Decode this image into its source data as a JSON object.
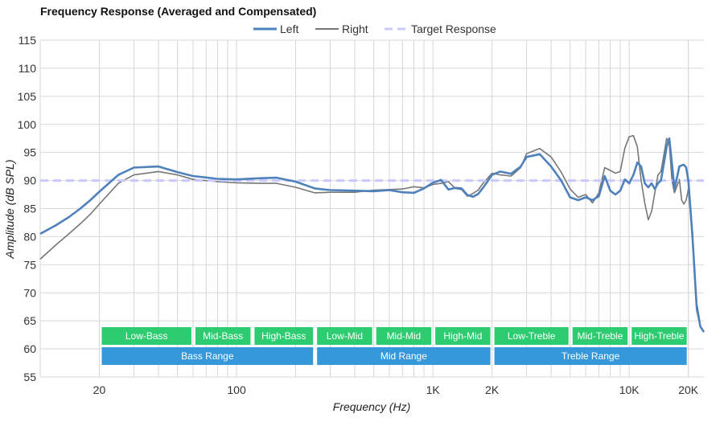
{
  "chart_data": {
    "type": "line",
    "title": "Frequency Response (Averaged and Compensated)",
    "xlabel": "Frequency (Hz)",
    "ylabel": "Amplitude (dB SPL)",
    "x_scale": "log",
    "xlim": [
      10,
      24000
    ],
    "ylim": [
      55,
      115
    ],
    "x_ticks": [
      {
        "value": 20,
        "label": "20"
      },
      {
        "value": 100,
        "label": "100"
      },
      {
        "value": 1000,
        "label": "1K"
      },
      {
        "value": 2000,
        "label": "2K"
      },
      {
        "value": 10000,
        "label": "10K"
      },
      {
        "value": 20000,
        "label": "20K"
      }
    ],
    "y_ticks": [
      55,
      60,
      65,
      70,
      75,
      80,
      85,
      90,
      95,
      100,
      105,
      110,
      115
    ],
    "grid": true,
    "legend_position": "top-center",
    "series": [
      {
        "name": "Left",
        "color": "#4f81bd",
        "x": [
          10,
          12,
          14,
          16,
          18,
          20,
          25,
          30,
          40,
          50,
          60,
          80,
          100,
          130,
          160,
          200,
          250,
          300,
          400,
          500,
          600,
          700,
          800,
          900,
          1000,
          1100,
          1200,
          1300,
          1400,
          1500,
          1600,
          1700,
          1800,
          2000,
          2200,
          2500,
          2800,
          3000,
          3500,
          4000,
          4500,
          5000,
          5500,
          6000,
          6500,
          7000,
          7500,
          8000,
          8500,
          9000,
          9500,
          10000,
          10500,
          11000,
          11500,
          12000,
          12500,
          13000,
          13500,
          14000,
          14500,
          15000,
          15500,
          16000,
          16500,
          17000,
          17500,
          18000,
          18500,
          19000,
          19500,
          20000,
          21000,
          22000,
          23000,
          24000
        ],
        "values": [
          80.5,
          82,
          83.5,
          85,
          86.5,
          88,
          91,
          92.3,
          92.5,
          91.5,
          90.8,
          90.3,
          90.2,
          90.4,
          90.5,
          89.8,
          88.6,
          88.3,
          88.2,
          88.1,
          88.3,
          87.9,
          87.8,
          88.6,
          89.6,
          90.1,
          88.4,
          88.7,
          88.6,
          87.4,
          87.1,
          87.6,
          88.7,
          91,
          91.6,
          91.2,
          92.5,
          94.2,
          94.7,
          92.5,
          90,
          87,
          86.5,
          87,
          86.5,
          87.2,
          90.8,
          88.2,
          87.5,
          88.2,
          90.2,
          89.5,
          91,
          93.2,
          92.5,
          89.5,
          88.8,
          89.5,
          88.5,
          89.5,
          90,
          93,
          96,
          97.5,
          93,
          88.5,
          90.5,
          92.5,
          92.7,
          92.8,
          92.3,
          90,
          80,
          68,
          64,
          63
        ]
      },
      {
        "name": "Right",
        "color": "#777777",
        "x": [
          10,
          12,
          14,
          16,
          18,
          20,
          25,
          30,
          40,
          50,
          60,
          80,
          100,
          130,
          160,
          200,
          250,
          300,
          400,
          500,
          600,
          700,
          800,
          900,
          1000,
          1100,
          1200,
          1300,
          1400,
          1500,
          1600,
          1700,
          1800,
          2000,
          2200,
          2500,
          2800,
          3000,
          3500,
          4000,
          4500,
          5000,
          5500,
          6000,
          6500,
          7000,
          7500,
          8000,
          8500,
          9000,
          9500,
          10000,
          10500,
          11000,
          11500,
          12000,
          12500,
          13000,
          13500,
          14000,
          14500,
          15000,
          15500,
          16000,
          16500,
          17000,
          17500,
          18000,
          18500,
          19000,
          19500,
          20000,
          21000,
          22000,
          23000,
          24000
        ],
        "values": [
          76,
          78.5,
          80.5,
          82.3,
          84,
          85.8,
          89.5,
          91,
          91.6,
          91,
          90.2,
          89.8,
          89.6,
          89.5,
          89.5,
          88.8,
          87.8,
          87.9,
          87.9,
          88.3,
          88.4,
          88.5,
          88.9,
          88.7,
          89.3,
          89.5,
          89.8,
          88.6,
          88.4,
          87.2,
          87.7,
          88.3,
          89.5,
          91.3,
          91,
          90.8,
          92.3,
          94.8,
          95.7,
          94.2,
          91.5,
          88.5,
          87,
          87.5,
          86,
          87.8,
          92.3,
          91.8,
          91.3,
          91.6,
          95.8,
          97.8,
          98,
          96,
          90,
          86,
          83,
          84.5,
          87.8,
          91,
          91.6,
          94.5,
          97.5,
          96.5,
          90,
          87.8,
          89,
          90.2,
          86.5,
          85.8,
          86.5,
          88.5,
          80,
          67,
          64,
          63
        ]
      },
      {
        "name": "Target Response",
        "color": "#c9c9ff",
        "dashed": true,
        "x": [
          10,
          24000
        ],
        "values": [
          90,
          90
        ]
      }
    ],
    "bands": [
      {
        "row": 0,
        "label": "Low-Bass",
        "from": 20,
        "to": 60
      },
      {
        "row": 0,
        "label": "Mid-Bass",
        "from": 60,
        "to": 120
      },
      {
        "row": 0,
        "label": "High-Bass",
        "from": 120,
        "to": 250
      },
      {
        "row": 0,
        "label": "Low-Mid",
        "from": 250,
        "to": 500
      },
      {
        "row": 0,
        "label": "Mid-Mid",
        "from": 500,
        "to": 1000
      },
      {
        "row": 0,
        "label": "High-Mid",
        "from": 1000,
        "to": 2000
      },
      {
        "row": 0,
        "label": "Low-Treble",
        "from": 2000,
        "to": 5000
      },
      {
        "row": 0,
        "label": "Mid-Treble",
        "from": 5000,
        "to": 10000
      },
      {
        "row": 0,
        "label": "High-Treble",
        "from": 10000,
        "to": 20000
      },
      {
        "row": 1,
        "label": "Bass Range",
        "from": 20,
        "to": 250
      },
      {
        "row": 1,
        "label": "Mid Range",
        "from": 250,
        "to": 2000
      },
      {
        "row": 1,
        "label": "Treble Range",
        "from": 2000,
        "to": 20000
      }
    ],
    "band_colors": {
      "row0": "#2ecc71",
      "row1": "#3498db"
    }
  }
}
